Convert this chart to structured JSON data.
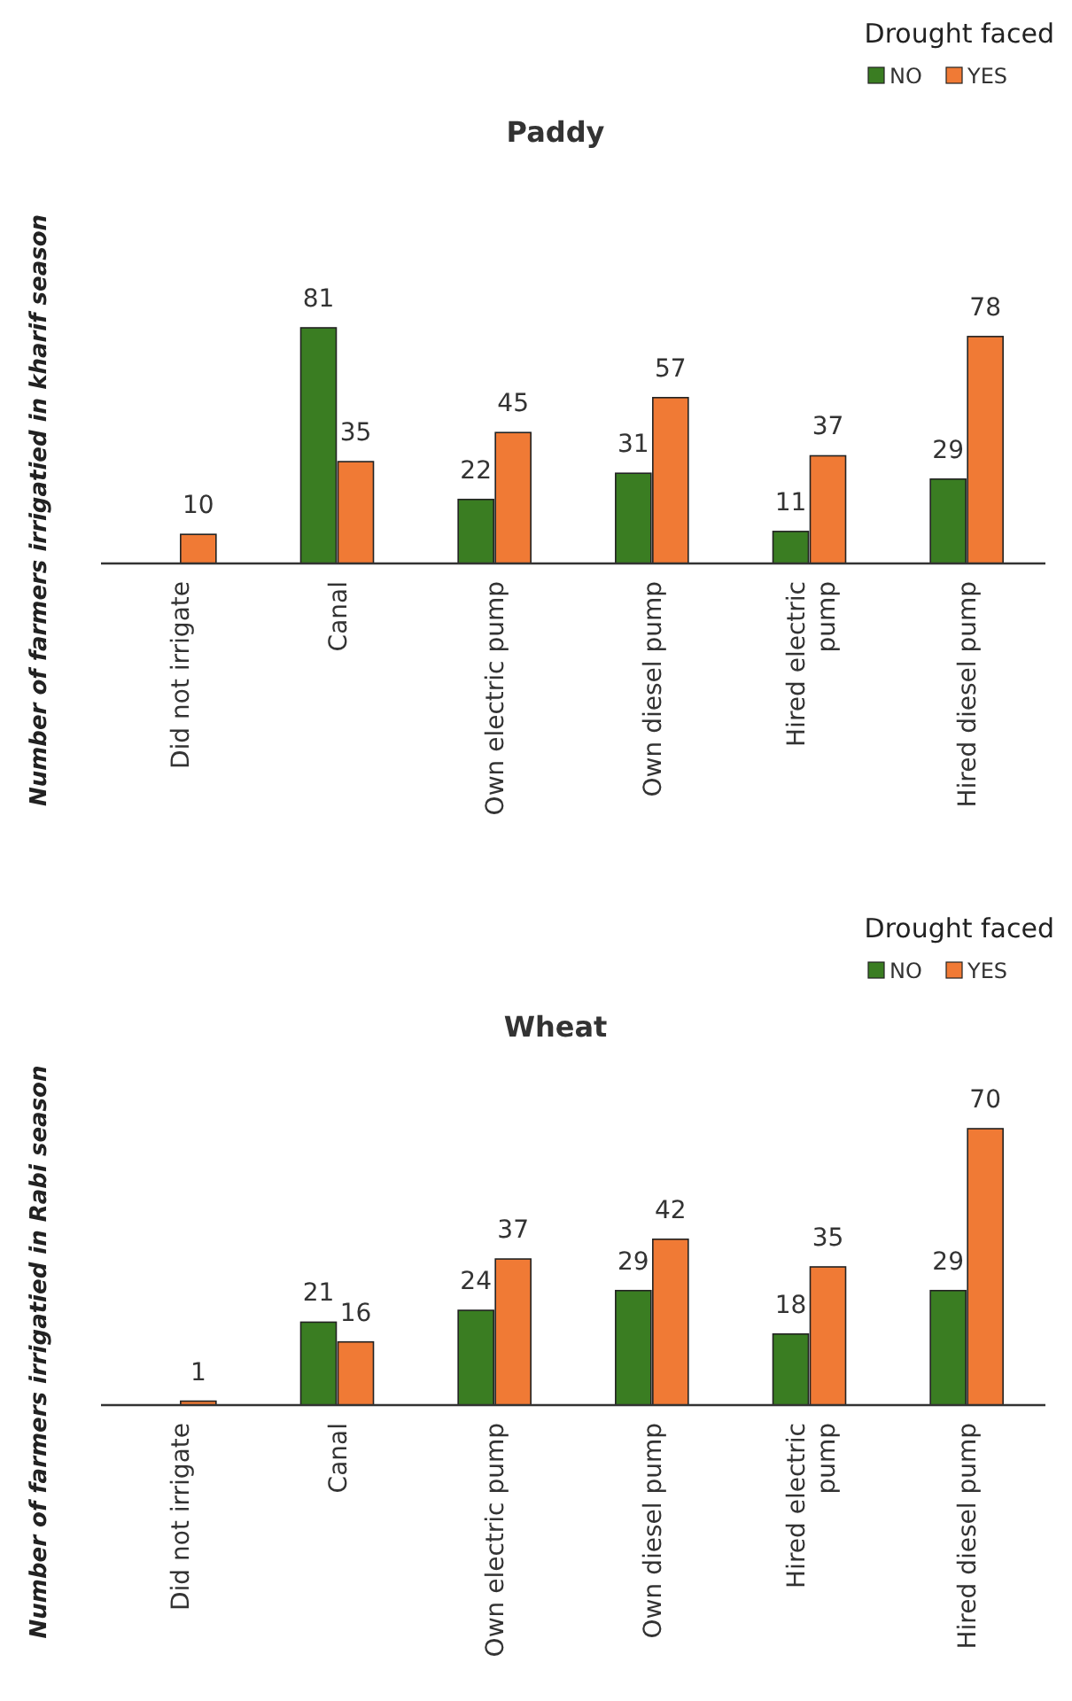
{
  "chart_data": [
    {
      "type": "bar",
      "title": "Paddy",
      "ylabel": "Number of farmers irrigatied in kharif season",
      "legend_title": "Drought faced",
      "legend": "top right",
      "relative": false,
      "data_labels": true,
      "categories": [
        "Did not irrigate",
        "Canal",
        "Own electric pump",
        "Own diesel pump",
        "Hired electric pump",
        "Hired diesel pump"
      ],
      "series": [
        {
          "name": "NO",
          "color": "#3a7d22",
          "values": [
            null,
            81,
            22,
            31,
            11,
            29
          ]
        },
        {
          "name": "YES",
          "color": "#f07a35",
          "values": [
            10,
            35,
            45,
            57,
            37,
            78
          ]
        }
      ]
    },
    {
      "type": "bar",
      "title": "Wheat",
      "ylabel": "Number of farmers irrigatied in Rabi season",
      "legend_title": "Drought faced",
      "legend": "top right",
      "relative": false,
      "data_labels": true,
      "categories": [
        "Did not irrigate",
        "Canal",
        "Own electric pump",
        "Own diesel pump",
        "Hired electric pump",
        "Hired diesel pump"
      ],
      "series": [
        {
          "name": "NO",
          "color": "#3a7d22",
          "values": [
            null,
            21,
            24,
            29,
            18,
            29
          ]
        },
        {
          "name": "YES",
          "color": "#f07a35",
          "values": [
            1,
            16,
            37,
            42,
            35,
            70
          ]
        }
      ]
    }
  ]
}
